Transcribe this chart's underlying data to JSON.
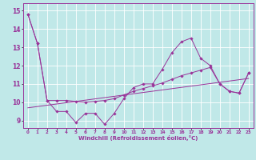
{
  "xlabel": "Windchill (Refroidissement éolien,°C)",
  "background_color": "#c0e8e8",
  "line_color": "#993399",
  "grid_color": "#a0d0d0",
  "xlim": [
    -0.5,
    23.5
  ],
  "ylim": [
    8.6,
    15.4
  ],
  "yticks": [
    9,
    10,
    11,
    12,
    13,
    14,
    15
  ],
  "xticks": [
    0,
    1,
    2,
    3,
    4,
    5,
    6,
    7,
    8,
    9,
    10,
    11,
    12,
    13,
    14,
    15,
    16,
    17,
    18,
    19,
    20,
    21,
    22,
    23
  ],
  "series1": [
    14.8,
    13.2,
    10.1,
    9.5,
    9.5,
    8.9,
    9.4,
    9.4,
    8.8,
    9.4,
    10.2,
    10.8,
    11.0,
    11.0,
    11.8,
    12.7,
    13.3,
    13.5,
    12.4,
    12.0,
    11.0,
    10.6,
    10.5,
    11.6
  ],
  "series2": [
    14.8,
    13.2,
    10.1,
    10.1,
    10.1,
    10.05,
    10.0,
    10.05,
    10.1,
    10.2,
    10.4,
    10.6,
    10.75,
    10.9,
    11.05,
    11.25,
    11.45,
    11.6,
    11.75,
    11.9,
    11.0,
    10.6,
    10.5,
    11.6
  ],
  "series3_x": [
    0,
    23
  ],
  "series3_y": [
    9.7,
    11.3
  ]
}
